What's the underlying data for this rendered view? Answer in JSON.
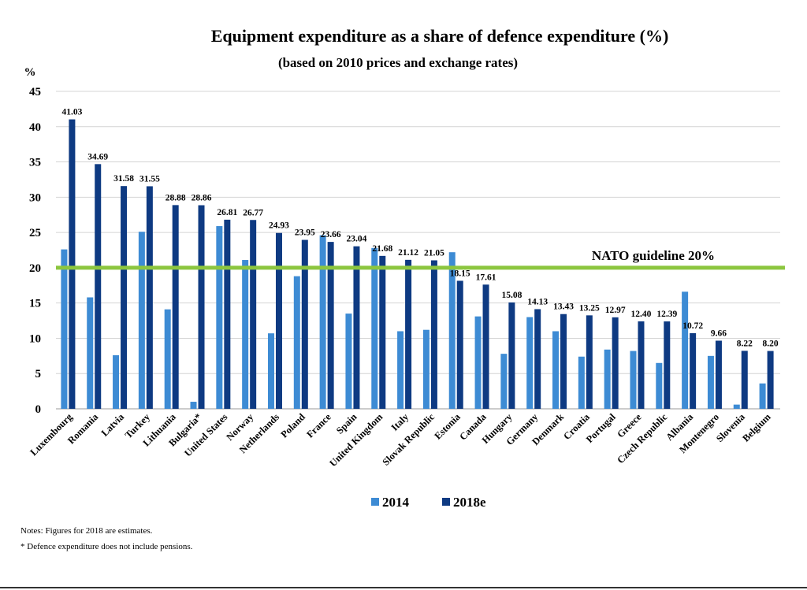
{
  "chart_data": {
    "type": "bar",
    "title": "Equipment expenditure as a share of defence expenditure (%)",
    "subtitle": "(based on 2010 prices and exchange rates)",
    "ylabel": "%",
    "ylim": [
      0,
      45
    ],
    "yticks": [
      "0",
      "5",
      "10",
      "15",
      "20",
      "25",
      "30",
      "35",
      "40",
      "45"
    ],
    "grid": true,
    "legend_position": "bottom",
    "categories": [
      "Luxembourg",
      "Romania",
      "Latvia",
      "Turkey",
      "Lithuania",
      "Bulgaria*",
      "United States",
      "Norway",
      "Netherlands",
      "Poland",
      "France",
      "Spain",
      "United Kingdom",
      "Italy",
      "Slovak Republic",
      "Estonia",
      "Canada",
      "Hungary",
      "Germany",
      "Denmark",
      "Croatia",
      "Portugal",
      "Greece",
      "Czech Republic",
      "Albania",
      "Montenegro",
      "Slovenia",
      "Belgium"
    ],
    "series": [
      {
        "name": "2014",
        "color": "#3d8bd4",
        "values": [
          22.6,
          15.8,
          7.6,
          25.1,
          14.1,
          1.0,
          25.9,
          21.1,
          10.7,
          18.8,
          24.6,
          13.5,
          22.8,
          11.0,
          11.2,
          22.2,
          13.1,
          7.8,
          13.0,
          11.0,
          7.4,
          8.4,
          8.2,
          6.5,
          16.6,
          7.5,
          0.6,
          3.6
        ],
        "labels": []
      },
      {
        "name": "2018e",
        "color": "#0e3a82",
        "values": [
          41.03,
          34.69,
          31.58,
          31.55,
          28.88,
          28.86,
          26.81,
          26.77,
          24.93,
          23.95,
          23.66,
          23.04,
          21.68,
          21.12,
          21.05,
          18.15,
          17.61,
          15.08,
          14.13,
          13.43,
          13.25,
          12.97,
          12.4,
          12.39,
          10.72,
          9.66,
          8.22,
          8.2
        ],
        "labels": [
          "41.03",
          "34.69",
          "31.58",
          "31.55",
          "28.88",
          "28.86",
          "26.81",
          "26.77",
          "24.93",
          "23.95",
          "23.66",
          "23.04",
          "21.68",
          "21.12",
          "21.05",
          "18.15",
          "17.61",
          "15.08",
          "14.13",
          "13.43",
          "13.25",
          "12.97",
          "12.40",
          "12.39",
          "10.72",
          "9.66",
          "8.22",
          "8.20"
        ]
      }
    ],
    "reference_line": {
      "value": 20,
      "label": "NATO guideline 20%",
      "color": "#8cc63f"
    }
  },
  "notes": [
    "Notes: Figures for 2018 are estimates.",
    "*    Defence expenditure does not include pensions."
  ]
}
